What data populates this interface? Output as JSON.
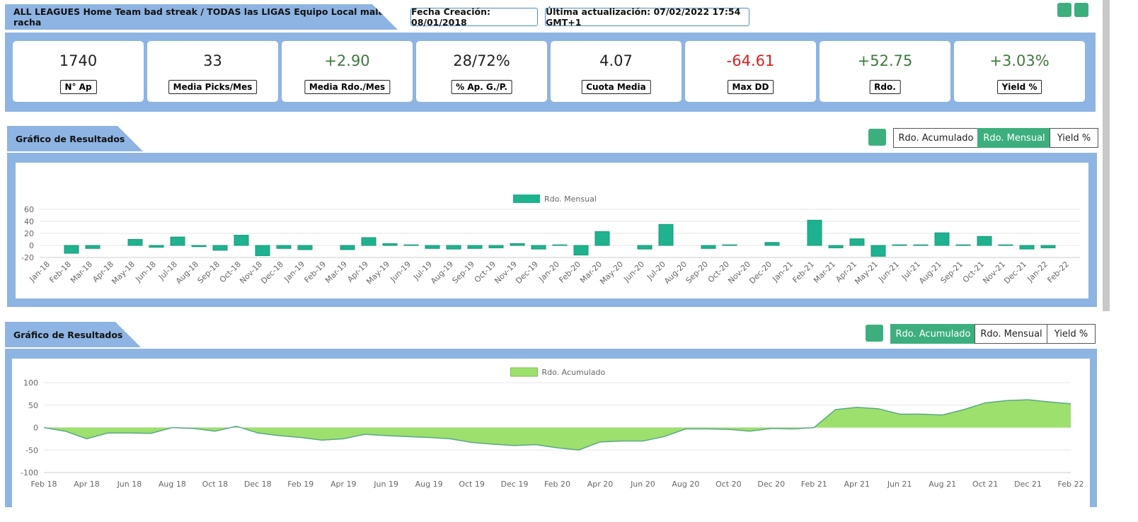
{
  "header": {
    "title": "ALL LEAGUES Home Team bad streak / TODAS las LIGAS Equipo Local mala racha",
    "created": "Fecha Creación: 08/01/2018",
    "updated": "Última actualización: 07/02/2022 17:54 GMT+1"
  },
  "stats": [
    {
      "value": "1740",
      "label": "N° Ap",
      "color": "#222222"
    },
    {
      "value": "33",
      "label": "Media Picks/Mes",
      "color": "#222222"
    },
    {
      "value": "+2.90",
      "label": "Media Rdo./Mes",
      "color": "#3c7a3c"
    },
    {
      "value": "28/72%",
      "label": "% Ap. G./P.",
      "color": "#222222"
    },
    {
      "value": "4.07",
      "label": "Cuota Media",
      "color": "#222222"
    },
    {
      "value": "-64.61",
      "label": "Max DD",
      "color": "#d62020"
    },
    {
      "value": "+52.75",
      "label": "Rdo.",
      "color": "#3c7a3c"
    },
    {
      "value": "+3.03%",
      "label": "Yield %",
      "color": "#3c7a3c"
    }
  ],
  "sections": [
    {
      "title": "Gráfico de Resultados",
      "buttons": [
        "Rdo. Acumulado",
        "Rdo. Mensual",
        "Yield %"
      ],
      "active": 1
    },
    {
      "title": "Gráfico de Resultados",
      "buttons": [
        "Rdo. Acumulado",
        "Rdo. Mensual",
        "Yield %"
      ],
      "active": 0
    }
  ],
  "chart_data": [
    {
      "type": "bar",
      "categories": [
        "Jan-18",
        "Feb-18",
        "Mar-18",
        "Apr-18",
        "May-18",
        "Jun-18",
        "Jul-18",
        "Aug-18",
        "Sep-18",
        "Oct-18",
        "Nov-18",
        "Dec-18",
        "Jan-19",
        "Feb-19",
        "Mar-19",
        "Apr-19",
        "May-19",
        "Jun-19",
        "Jul-19",
        "Aug-19",
        "Sep-19",
        "Oct-19",
        "Nov-19",
        "Dec-19",
        "Jan-20",
        "Feb-20",
        "Mar-20",
        "May-20",
        "Jun-20",
        "Jul-20",
        "Aug-20",
        "Sep-20",
        "Oct-20",
        "Nov-20",
        "Dec-20",
        "Jan-21",
        "Feb-21",
        "Mar-21",
        "Apr-21",
        "May-21",
        "Jun-21",
        "Jul-21",
        "Aug-21",
        "Sep-21",
        "Oct-21",
        "Nov-21",
        "Dec-21",
        "Jan-22",
        "Feb-22"
      ],
      "series": [
        {
          "name": "Rdo. Mensual",
          "color": "#1fb28f",
          "values": [
            0,
            -13,
            -5,
            0,
            10,
            -3,
            14,
            -2,
            -8,
            17,
            -17,
            -5,
            -7,
            0,
            -7,
            13,
            3,
            1,
            -5,
            -6,
            -5,
            -4,
            3,
            -6,
            1,
            -16,
            23,
            0,
            -6,
            35,
            0,
            -5,
            1,
            0,
            5,
            0,
            42,
            -4,
            11,
            -18,
            1,
            1,
            21,
            1,
            15,
            1,
            -6,
            -4,
            0
          ]
        }
      ],
      "ylim": [
        -20,
        60
      ],
      "yticks": [
        -20,
        0,
        20,
        40,
        60
      ],
      "grid": true
    },
    {
      "type": "area",
      "categories": [
        "Feb 18",
        null,
        "Apr 18",
        null,
        "Jun 18",
        null,
        "Aug 18",
        null,
        "Oct 18",
        null,
        "Dec 18",
        null,
        "Feb 19",
        null,
        "Apr 19",
        null,
        "Jun 19",
        null,
        "Aug 19",
        null,
        "Oct 19",
        null,
        "Dec 19",
        null,
        "Feb 20",
        null,
        "Apr 20",
        null,
        "Jun 20",
        null,
        "Aug 20",
        null,
        "Oct 20",
        null,
        "Dec 20",
        null,
        "Feb 21",
        null,
        "Apr 21",
        null,
        "Jun 21",
        null,
        "Aug 21",
        null,
        "Oct 21",
        null,
        "Dec 21",
        null,
        "Feb 22"
      ],
      "series": [
        {
          "name": "Rdo. Acumulado",
          "color": "#9de06e",
          "values": [
            0,
            -8,
            -25,
            -12,
            -12,
            -13,
            0,
            -2,
            -8,
            3,
            -12,
            -18,
            -22,
            -28,
            -25,
            -15,
            -18,
            -20,
            -22,
            -25,
            -33,
            -37,
            -40,
            -38,
            -45,
            -50,
            -32,
            -30,
            -30,
            -20,
            -3,
            -3,
            -4,
            -8,
            -2,
            -3,
            0,
            40,
            45,
            42,
            30,
            30,
            28,
            40,
            55,
            60,
            62,
            57,
            53
          ]
        }
      ],
      "ylim": [
        -100,
        100
      ],
      "yticks": [
        -100,
        -50,
        0,
        50,
        100
      ],
      "grid": true
    }
  ]
}
